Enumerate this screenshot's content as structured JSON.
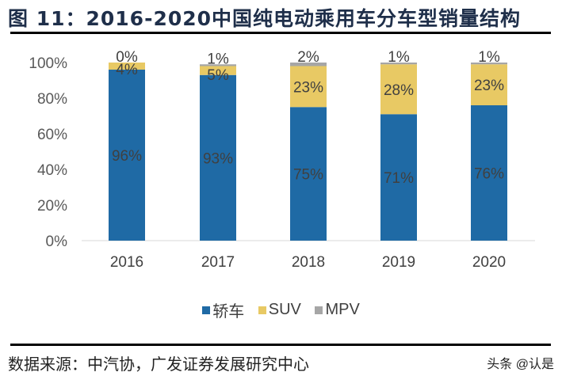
{
  "title": "图 11：2016-2020中国纯电动乘用车分车型销量结构",
  "source": "数据来源：中汽协，广发证券发展研究中心",
  "watermark": "头条 @认是",
  "chart_data": {
    "type": "bar",
    "stacked": true,
    "categories": [
      "2016",
      "2017",
      "2018",
      "2019",
      "2020"
    ],
    "series": [
      {
        "name": "轿车",
        "values": [
          96,
          93,
          75,
          71,
          76
        ],
        "labels": [
          "96%",
          "93%",
          "75%",
          "71%",
          "76%"
        ],
        "color": "#1f6aa5"
      },
      {
        "name": "SUV",
        "values": [
          4,
          5,
          23,
          28,
          23
        ],
        "labels": [
          "4%",
          "5%",
          "23%",
          "28%",
          "23%"
        ],
        "color": "#e8c964"
      },
      {
        "name": "MPV",
        "values": [
          0,
          1,
          2,
          1,
          1
        ],
        "labels": [
          "0%",
          "1%",
          "2%",
          "1%",
          "1%"
        ],
        "color": "#a6a6a6"
      }
    ],
    "yticks": [
      "0%",
      "20%",
      "40%",
      "60%",
      "80%",
      "100%"
    ],
    "ylim": [
      0,
      100
    ],
    "grid": false,
    "legend": "bottom"
  }
}
